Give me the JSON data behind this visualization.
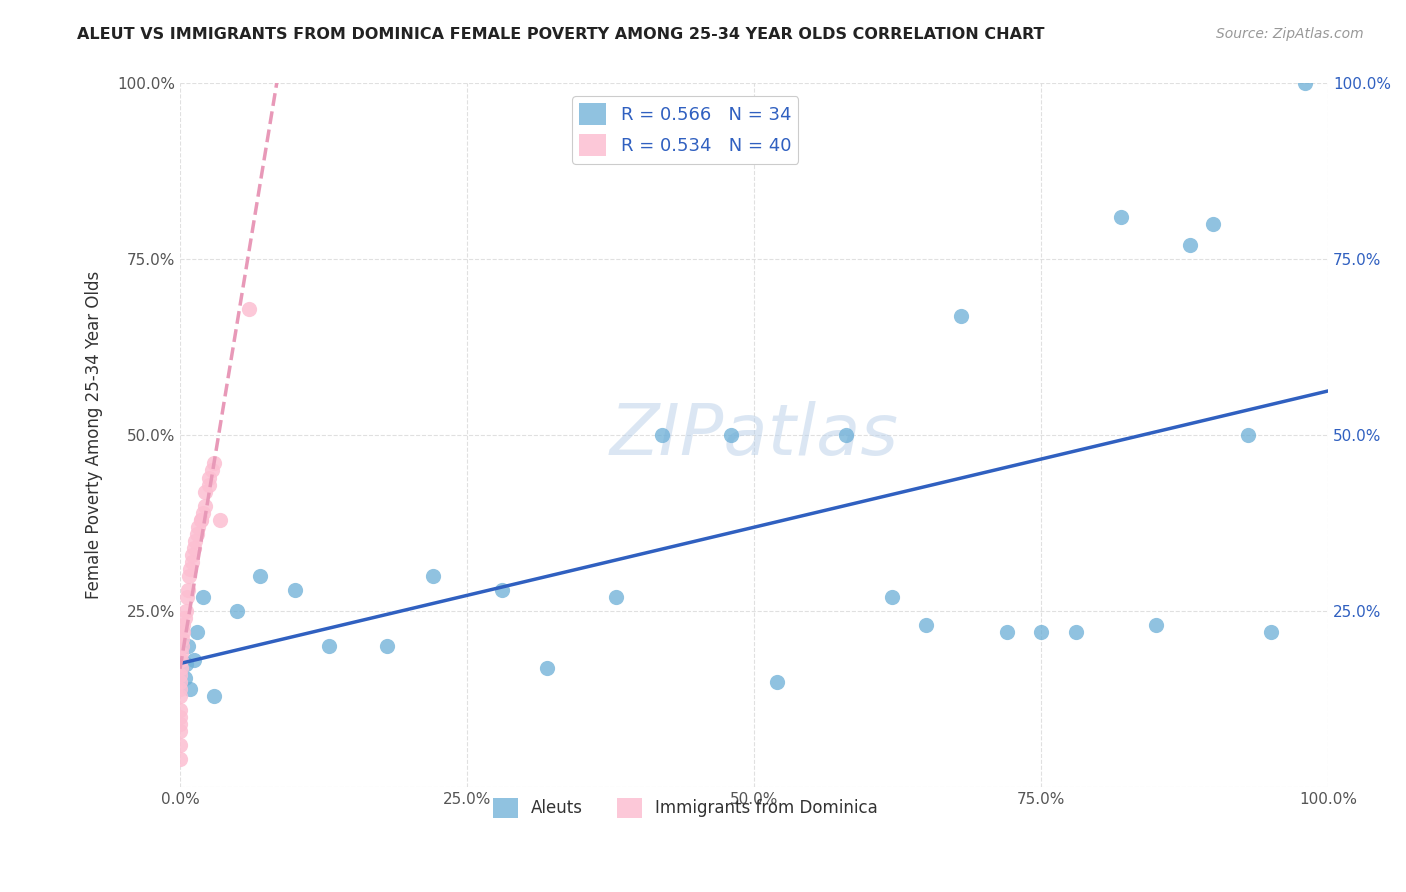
{
  "title": "ALEUT VS IMMIGRANTS FROM DOMINICA FEMALE POVERTY AMONG 25-34 YEAR OLDS CORRELATION CHART",
  "source": "Source: ZipAtlas.com",
  "ylabel": "Female Poverty Among 25-34 Year Olds",
  "xlim": [
    0,
    1.0
  ],
  "ylim": [
    0,
    1.0
  ],
  "xticks": [
    0.0,
    0.25,
    0.5,
    0.75,
    1.0
  ],
  "xticklabels": [
    "0.0%",
    "25.0%",
    "50.0%",
    "75.0%",
    "100.0%"
  ],
  "yticks": [
    0.0,
    0.25,
    0.5,
    0.75,
    1.0
  ],
  "yticklabels": [
    "",
    "25.0%",
    "50.0%",
    "75.0%",
    "100.0%"
  ],
  "right_yticklabels": [
    "",
    "25.0%",
    "50.0%",
    "75.0%",
    "100.0%"
  ],
  "legend1_text": "R = 0.566   N = 34",
  "legend2_text": "R = 0.534   N = 40",
  "legend1_color": "#6baed6",
  "legend2_color": "#fcbfd2",
  "series1_label": "Aleuts",
  "series2_label": "Immigrants from Dominica",
  "series1_color": "#6baed6",
  "series2_color": "#fcbfd2",
  "trendline1_color": "#3060c0",
  "trendline2_color": "#e899b8",
  "background_color": "#ffffff",
  "grid_color": "#dddddd",
  "watermark": "ZIPatlas",
  "aleuts_x": [
    0.004,
    0.005,
    0.007,
    0.009,
    0.012,
    0.015,
    0.02,
    0.03,
    0.05,
    0.07,
    0.1,
    0.13,
    0.18,
    0.22,
    0.28,
    0.32,
    0.38,
    0.42,
    0.48,
    0.52,
    0.58,
    0.62,
    0.65,
    0.68,
    0.72,
    0.75,
    0.78,
    0.82,
    0.85,
    0.88,
    0.9,
    0.93,
    0.95,
    0.98
  ],
  "aleuts_y": [
    0.155,
    0.175,
    0.2,
    0.14,
    0.18,
    0.22,
    0.27,
    0.13,
    0.25,
    0.3,
    0.28,
    0.2,
    0.2,
    0.3,
    0.28,
    0.17,
    0.27,
    0.5,
    0.5,
    0.15,
    0.5,
    0.27,
    0.23,
    0.67,
    0.22,
    0.22,
    0.22,
    0.81,
    0.23,
    0.77,
    0.8,
    0.5,
    0.22,
    1.0
  ],
  "dominica_x": [
    0.0,
    0.0,
    0.0,
    0.0,
    0.0,
    0.0,
    0.0,
    0.0,
    0.0,
    0.0,
    0.001,
    0.001,
    0.001,
    0.002,
    0.002,
    0.003,
    0.003,
    0.004,
    0.005,
    0.006,
    0.007,
    0.008,
    0.009,
    0.01,
    0.01,
    0.012,
    0.013,
    0.015,
    0.016,
    0.018,
    0.018,
    0.02,
    0.022,
    0.022,
    0.025,
    0.025,
    0.028,
    0.03,
    0.035,
    0.06
  ],
  "dominica_y": [
    0.04,
    0.06,
    0.08,
    0.09,
    0.1,
    0.11,
    0.13,
    0.14,
    0.15,
    0.16,
    0.17,
    0.18,
    0.19,
    0.2,
    0.21,
    0.22,
    0.23,
    0.24,
    0.25,
    0.27,
    0.28,
    0.3,
    0.31,
    0.32,
    0.33,
    0.34,
    0.35,
    0.36,
    0.37,
    0.38,
    0.38,
    0.39,
    0.4,
    0.42,
    0.43,
    0.44,
    0.45,
    0.46,
    0.38,
    0.68
  ]
}
